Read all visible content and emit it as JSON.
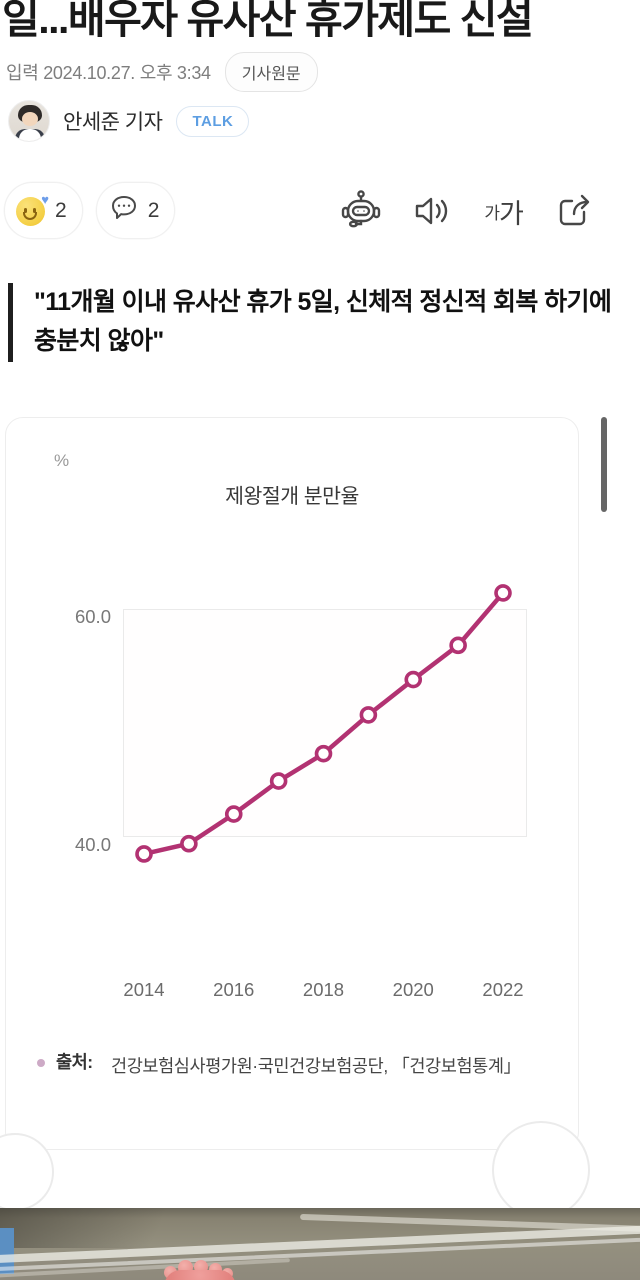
{
  "article": {
    "headline": "일...배우자 유사산 휴가제도 신설",
    "published_label": "입력 2024.10.27. 오후 3:34",
    "original_link_label": "기사원문",
    "reporter_name": "안세준 기자",
    "talk_label": "TALK",
    "reaction_count": "2",
    "comment_count": "2",
    "font_size_small": "가",
    "font_size_large": "가",
    "quote": "\"11개월 이내 유사산 휴가 5일, 신체적 정신적 회복 하기에 충분치 않아\""
  },
  "chart_data": {
    "type": "line",
    "title": "제왕절개 분만율",
    "unit_label": "%",
    "x": [
      2014,
      2015,
      2016,
      2017,
      2018,
      2019,
      2020,
      2021,
      2022
    ],
    "values": [
      39.3,
      40.2,
      42.8,
      45.7,
      48.1,
      51.5,
      54.6,
      57.6,
      62.2
    ],
    "x_tick_labels": [
      "2014",
      "2016",
      "2018",
      "2020",
      "2022"
    ],
    "y_tick_labels": [
      "60.0",
      "40.0"
    ],
    "y_tick_values": [
      60.0,
      40.0
    ],
    "ylim": [
      38.5,
      63.5
    ],
    "grid": false,
    "legend": "none",
    "line_color": "#b23272",
    "marker": "open-circle",
    "source_label": "출처:",
    "source_text": "건강보험심사평가원·국민건강보험공단, 「건강보험통계」"
  }
}
